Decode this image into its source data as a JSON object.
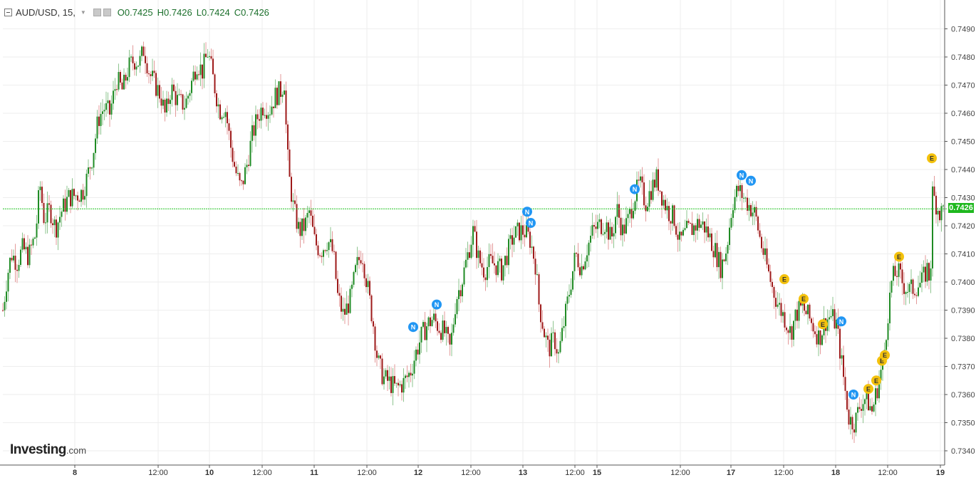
{
  "header": {
    "symbol": "AUD/USD, 15,",
    "open": "O0.7425",
    "high": "H0.7426",
    "low": "L0.7424",
    "close": "C0.7426"
  },
  "logo": {
    "brand": "Investing",
    "domain": ".com"
  },
  "current_price_label": "0.7426",
  "colors": {
    "up": "#1f8b24",
    "down": "#9e1a1a",
    "wick_up": "#8ec48f",
    "wick_down": "#e39a9a",
    "price_line": "#22c322",
    "news_marker": "#2196f3",
    "event_marker": "#f4c20d",
    "grid": "#eeeeee"
  },
  "chart_data": {
    "type": "candlestick",
    "title": "AUD/USD, 15,",
    "ylim": [
      0.7336,
      0.7496
    ],
    "y_ticks": [
      "0.7490",
      "0.7480",
      "0.7470",
      "0.7460",
      "0.7450",
      "0.7440",
      "0.7430",
      "0.7420",
      "0.7410",
      "0.7400",
      "0.7390",
      "0.7380",
      "0.7370",
      "0.7360",
      "0.7350",
      "0.7340"
    ],
    "x_ticks": [
      "8",
      "12:00",
      "10",
      "12:00",
      "11",
      "12:00",
      "12",
      "12:00",
      "13",
      "12:00",
      "15",
      "12:00",
      "17",
      "12:00",
      "18",
      "12:00",
      "19"
    ],
    "last_price": 0.7426,
    "path": [
      {
        "t": 0,
        "v": 0.739
      },
      {
        "t": 6,
        "v": 0.7402
      },
      {
        "t": 12,
        "v": 0.741
      },
      {
        "t": 20,
        "v": 0.7407
      },
      {
        "t": 28,
        "v": 0.7412
      },
      {
        "t": 36,
        "v": 0.7409
      },
      {
        "t": 46,
        "v": 0.7417
      },
      {
        "t": 52,
        "v": 0.7435
      },
      {
        "t": 58,
        "v": 0.7422
      },
      {
        "t": 66,
        "v": 0.7426
      },
      {
        "t": 74,
        "v": 0.7419
      },
      {
        "t": 82,
        "v": 0.7425
      },
      {
        "t": 92,
        "v": 0.743
      },
      {
        "t": 104,
        "v": 0.7431
      },
      {
        "t": 112,
        "v": 0.7432
      },
      {
        "t": 118,
        "v": 0.7437
      },
      {
        "t": 126,
        "v": 0.7445
      },
      {
        "t": 134,
        "v": 0.7458
      },
      {
        "t": 142,
        "v": 0.7462
      },
      {
        "t": 150,
        "v": 0.746
      },
      {
        "t": 160,
        "v": 0.7472
      },
      {
        "t": 168,
        "v": 0.7468
      },
      {
        "t": 176,
        "v": 0.7476
      },
      {
        "t": 184,
        "v": 0.7479
      },
      {
        "t": 192,
        "v": 0.7478
      },
      {
        "t": 198,
        "v": 0.7483
      },
      {
        "t": 206,
        "v": 0.7474
      },
      {
        "t": 214,
        "v": 0.747
      },
      {
        "t": 222,
        "v": 0.7466
      },
      {
        "t": 228,
        "v": 0.7459
      },
      {
        "t": 236,
        "v": 0.7469
      },
      {
        "t": 246,
        "v": 0.7464
      },
      {
        "t": 256,
        "v": 0.7463
      },
      {
        "t": 264,
        "v": 0.747
      },
      {
        "t": 272,
        "v": 0.7478
      },
      {
        "t": 280,
        "v": 0.7475
      },
      {
        "t": 288,
        "v": 0.7482
      },
      {
        "t": 296,
        "v": 0.7471
      },
      {
        "t": 304,
        "v": 0.7461
      },
      {
        "t": 312,
        "v": 0.7462
      },
      {
        "t": 320,
        "v": 0.7448
      },
      {
        "t": 326,
        "v": 0.744
      },
      {
        "t": 334,
        "v": 0.7433
      },
      {
        "t": 342,
        "v": 0.7441
      },
      {
        "t": 350,
        "v": 0.7452
      },
      {
        "t": 358,
        "v": 0.7459
      },
      {
        "t": 366,
        "v": 0.7463
      },
      {
        "t": 374,
        "v": 0.7461
      },
      {
        "t": 382,
        "v": 0.7466
      },
      {
        "t": 390,
        "v": 0.7468
      },
      {
        "t": 396,
        "v": 0.7472
      },
      {
        "t": 398,
        "v": 0.745
      },
      {
        "t": 402,
        "v": 0.7437
      },
      {
        "t": 408,
        "v": 0.7426
      },
      {
        "t": 416,
        "v": 0.7418
      },
      {
        "t": 424,
        "v": 0.742
      },
      {
        "t": 430,
        "v": 0.7425
      },
      {
        "t": 438,
        "v": 0.7414
      },
      {
        "t": 446,
        "v": 0.7411
      },
      {
        "t": 456,
        "v": 0.7415
      },
      {
        "t": 464,
        "v": 0.741
      },
      {
        "t": 470,
        "v": 0.7395
      },
      {
        "t": 478,
        "v": 0.7388
      },
      {
        "t": 488,
        "v": 0.7394
      },
      {
        "t": 496,
        "v": 0.7405
      },
      {
        "t": 504,
        "v": 0.7411
      },
      {
        "t": 512,
        "v": 0.7398
      },
      {
        "t": 520,
        "v": 0.7385
      },
      {
        "t": 526,
        "v": 0.7372
      },
      {
        "t": 534,
        "v": 0.7366
      },
      {
        "t": 544,
        "v": 0.7364
      },
      {
        "t": 552,
        "v": 0.7362
      },
      {
        "t": 562,
        "v": 0.7364
      },
      {
        "t": 572,
        "v": 0.7368
      },
      {
        "t": 580,
        "v": 0.7375
      },
      {
        "t": 588,
        "v": 0.7381
      },
      {
        "t": 596,
        "v": 0.7385
      },
      {
        "t": 604,
        "v": 0.7387
      },
      {
        "t": 612,
        "v": 0.7384
      },
      {
        "t": 620,
        "v": 0.7382
      },
      {
        "t": 628,
        "v": 0.7376
      },
      {
        "t": 636,
        "v": 0.7394
      },
      {
        "t": 644,
        "v": 0.74
      },
      {
        "t": 652,
        "v": 0.7409
      },
      {
        "t": 660,
        "v": 0.7418
      },
      {
        "t": 668,
        "v": 0.7408
      },
      {
        "t": 676,
        "v": 0.7404
      },
      {
        "t": 684,
        "v": 0.7407
      },
      {
        "t": 692,
        "v": 0.7406
      },
      {
        "t": 700,
        "v": 0.7404
      },
      {
        "t": 708,
        "v": 0.741
      },
      {
        "t": 716,
        "v": 0.7416
      },
      {
        "t": 724,
        "v": 0.7418
      },
      {
        "t": 732,
        "v": 0.7418
      },
      {
        "t": 740,
        "v": 0.7415
      },
      {
        "t": 748,
        "v": 0.7406
      },
      {
        "t": 752,
        "v": 0.7393
      },
      {
        "t": 760,
        "v": 0.7382
      },
      {
        "t": 766,
        "v": 0.7376
      },
      {
        "t": 774,
        "v": 0.738
      },
      {
        "t": 780,
        "v": 0.7374
      },
      {
        "t": 788,
        "v": 0.7386
      },
      {
        "t": 796,
        "v": 0.7398
      },
      {
        "t": 804,
        "v": 0.741
      },
      {
        "t": 812,
        "v": 0.7405
      },
      {
        "t": 820,
        "v": 0.7412
      },
      {
        "t": 828,
        "v": 0.7418
      },
      {
        "t": 836,
        "v": 0.742
      },
      {
        "t": 846,
        "v": 0.7421
      },
      {
        "t": 854,
        "v": 0.7415
      },
      {
        "t": 862,
        "v": 0.7426
      },
      {
        "t": 870,
        "v": 0.7418
      },
      {
        "t": 878,
        "v": 0.7422
      },
      {
        "t": 886,
        "v": 0.743
      },
      {
        "t": 894,
        "v": 0.7435
      },
      {
        "t": 902,
        "v": 0.7428
      },
      {
        "t": 910,
        "v": 0.7433
      },
      {
        "t": 918,
        "v": 0.7437
      },
      {
        "t": 926,
        "v": 0.743
      },
      {
        "t": 934,
        "v": 0.7425
      },
      {
        "t": 942,
        "v": 0.7423
      },
      {
        "t": 950,
        "v": 0.7414
      },
      {
        "t": 960,
        "v": 0.7418
      },
      {
        "t": 968,
        "v": 0.7419
      },
      {
        "t": 976,
        "v": 0.7421
      },
      {
        "t": 984,
        "v": 0.742
      },
      {
        "t": 992,
        "v": 0.7416
      },
      {
        "t": 1000,
        "v": 0.7411
      },
      {
        "t": 1008,
        "v": 0.7405
      },
      {
        "t": 1016,
        "v": 0.7412
      },
      {
        "t": 1024,
        "v": 0.7428
      },
      {
        "t": 1032,
        "v": 0.7433
      },
      {
        "t": 1040,
        "v": 0.743
      },
      {
        "t": 1048,
        "v": 0.7427
      },
      {
        "t": 1056,
        "v": 0.7424
      },
      {
        "t": 1064,
        "v": 0.7414
      },
      {
        "t": 1072,
        "v": 0.7406
      },
      {
        "t": 1080,
        "v": 0.7398
      },
      {
        "t": 1088,
        "v": 0.7392
      },
      {
        "t": 1096,
        "v": 0.7388
      },
      {
        "t": 1106,
        "v": 0.7382
      },
      {
        "t": 1114,
        "v": 0.7389
      },
      {
        "t": 1122,
        "v": 0.7391
      },
      {
        "t": 1130,
        "v": 0.7388
      },
      {
        "t": 1138,
        "v": 0.7384
      },
      {
        "t": 1146,
        "v": 0.738
      },
      {
        "t": 1154,
        "v": 0.7386
      },
      {
        "t": 1162,
        "v": 0.7388
      },
      {
        "t": 1170,
        "v": 0.7385
      },
      {
        "t": 1176,
        "v": 0.7374
      },
      {
        "t": 1182,
        "v": 0.7362
      },
      {
        "t": 1188,
        "v": 0.7351
      },
      {
        "t": 1196,
        "v": 0.735
      },
      {
        "t": 1204,
        "v": 0.7357
      },
      {
        "t": 1212,
        "v": 0.7359
      },
      {
        "t": 1220,
        "v": 0.7354
      },
      {
        "t": 1228,
        "v": 0.7363
      },
      {
        "t": 1236,
        "v": 0.7372
      },
      {
        "t": 1242,
        "v": 0.7388
      },
      {
        "t": 1248,
        "v": 0.7401
      },
      {
        "t": 1256,
        "v": 0.7404
      },
      {
        "t": 1264,
        "v": 0.7399
      },
      {
        "t": 1272,
        "v": 0.7397
      },
      {
        "t": 1280,
        "v": 0.7398
      },
      {
        "t": 1290,
        "v": 0.74
      },
      {
        "t": 1298,
        "v": 0.7405
      },
      {
        "t": 1302,
        "v": 0.7399
      },
      {
        "t": 1304,
        "v": 0.7432
      },
      {
        "t": 1310,
        "v": 0.7428
      },
      {
        "t": 1316,
        "v": 0.7424
      },
      {
        "t": 1320,
        "v": 0.7426
      }
    ],
    "news_markers": [
      {
        "label": "N",
        "t": 576,
        "v": 0.7384
      },
      {
        "label": "N",
        "t": 609,
        "v": 0.7392
      },
      {
        "label": "N",
        "t": 736,
        "v": 0.7425
      },
      {
        "label": "N",
        "t": 741,
        "v": 0.7421
      },
      {
        "label": "N",
        "t": 887,
        "v": 0.7433
      },
      {
        "label": "N",
        "t": 1037,
        "v": 0.7438
      },
      {
        "label": "N",
        "t": 1050,
        "v": 0.7436
      },
      {
        "label": "N",
        "t": 1177,
        "v": 0.7386
      },
      {
        "label": "N",
        "t": 1194,
        "v": 0.736
      }
    ],
    "event_markers": [
      {
        "label": "E",
        "t": 1097,
        "v": 0.7401
      },
      {
        "label": "E",
        "t": 1124,
        "v": 0.7394
      },
      {
        "label": "E",
        "t": 1151,
        "v": 0.7385
      },
      {
        "label": "E",
        "t": 1215,
        "v": 0.7362
      },
      {
        "label": "E",
        "t": 1226,
        "v": 0.7365
      },
      {
        "label": "E",
        "t": 1234,
        "v": 0.7372
      },
      {
        "label": "E",
        "t": 1238,
        "v": 0.7374
      },
      {
        "label": "E",
        "t": 1258,
        "v": 0.7409
      },
      {
        "label": "E",
        "t": 1304,
        "v": 0.7444
      }
    ]
  }
}
